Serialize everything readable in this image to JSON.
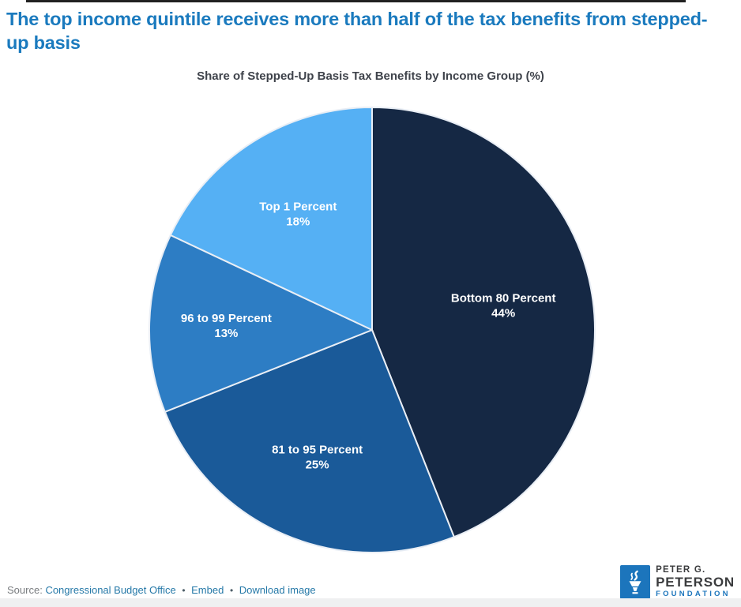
{
  "page": {
    "title": "The top income quintile receives more than half of the tax benefits from stepped-up basis"
  },
  "chart_data": {
    "type": "pie",
    "title": "Share of Stepped-Up Basis Tax Benefits by Income Group (%)",
    "start_angle_deg": 0,
    "direction": "clockwise",
    "legend_position": "none",
    "slices": [
      {
        "label": "Bottom 80 Percent",
        "value": 44,
        "display": "44%",
        "color": "#152844"
      },
      {
        "label": "81 to 95 Percent",
        "value": 25,
        "display": "25%",
        "color": "#1a5a99"
      },
      {
        "label": "96 to 99 Percent",
        "value": 13,
        "display": "13%",
        "color": "#2d7dc4"
      },
      {
        "label": "Top 1 Percent",
        "value": 18,
        "display": "18%",
        "color": "#55b0f4"
      }
    ]
  },
  "footer": {
    "source_label": "Source:",
    "source_link": "Congressional Budget Office",
    "separator": "•",
    "embed_link": "Embed",
    "download_link": "Download image"
  },
  "logo": {
    "line1": "PETER G.",
    "line2": "PETERSON",
    "line3": "FOUNDATION",
    "brand_color": "#1c75bc"
  },
  "colors": {
    "headline": "#1a7abe",
    "subtitle": "#3f434b",
    "link": "#2679a8",
    "slice_border": "#e9eef5"
  }
}
